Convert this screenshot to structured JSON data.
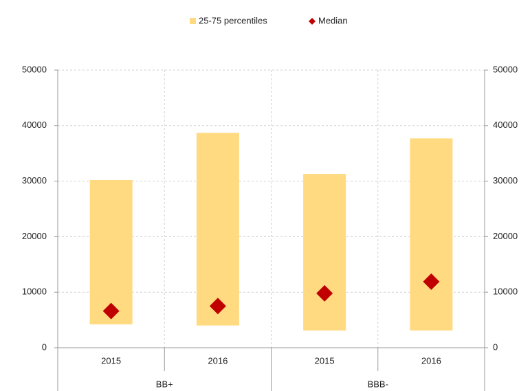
{
  "chart_data": {
    "type": "bar",
    "groups": [
      {
        "label": "BB+",
        "categories": [
          "2015",
          "2016"
        ]
      },
      {
        "label": "BBB-",
        "categories": [
          "2015",
          "2016"
        ]
      }
    ],
    "series": [
      {
        "name": "25-75 percentiles",
        "color": "#ffda80",
        "low": [
          4200,
          4000,
          3100,
          3100
        ],
        "high": [
          30200,
          38700,
          31300,
          37700
        ]
      },
      {
        "name": "Median",
        "color": "#c00000",
        "values": [
          6600,
          7500,
          9800,
          11900
        ]
      }
    ],
    "ylim": [
      0,
      50000
    ],
    "yticks": [
      0,
      10000,
      20000,
      30000,
      40000,
      50000
    ],
    "y2lim": [
      0,
      50000
    ],
    "y2ticks": [
      0,
      10000,
      20000,
      30000,
      40000,
      50000
    ],
    "grid": true
  }
}
